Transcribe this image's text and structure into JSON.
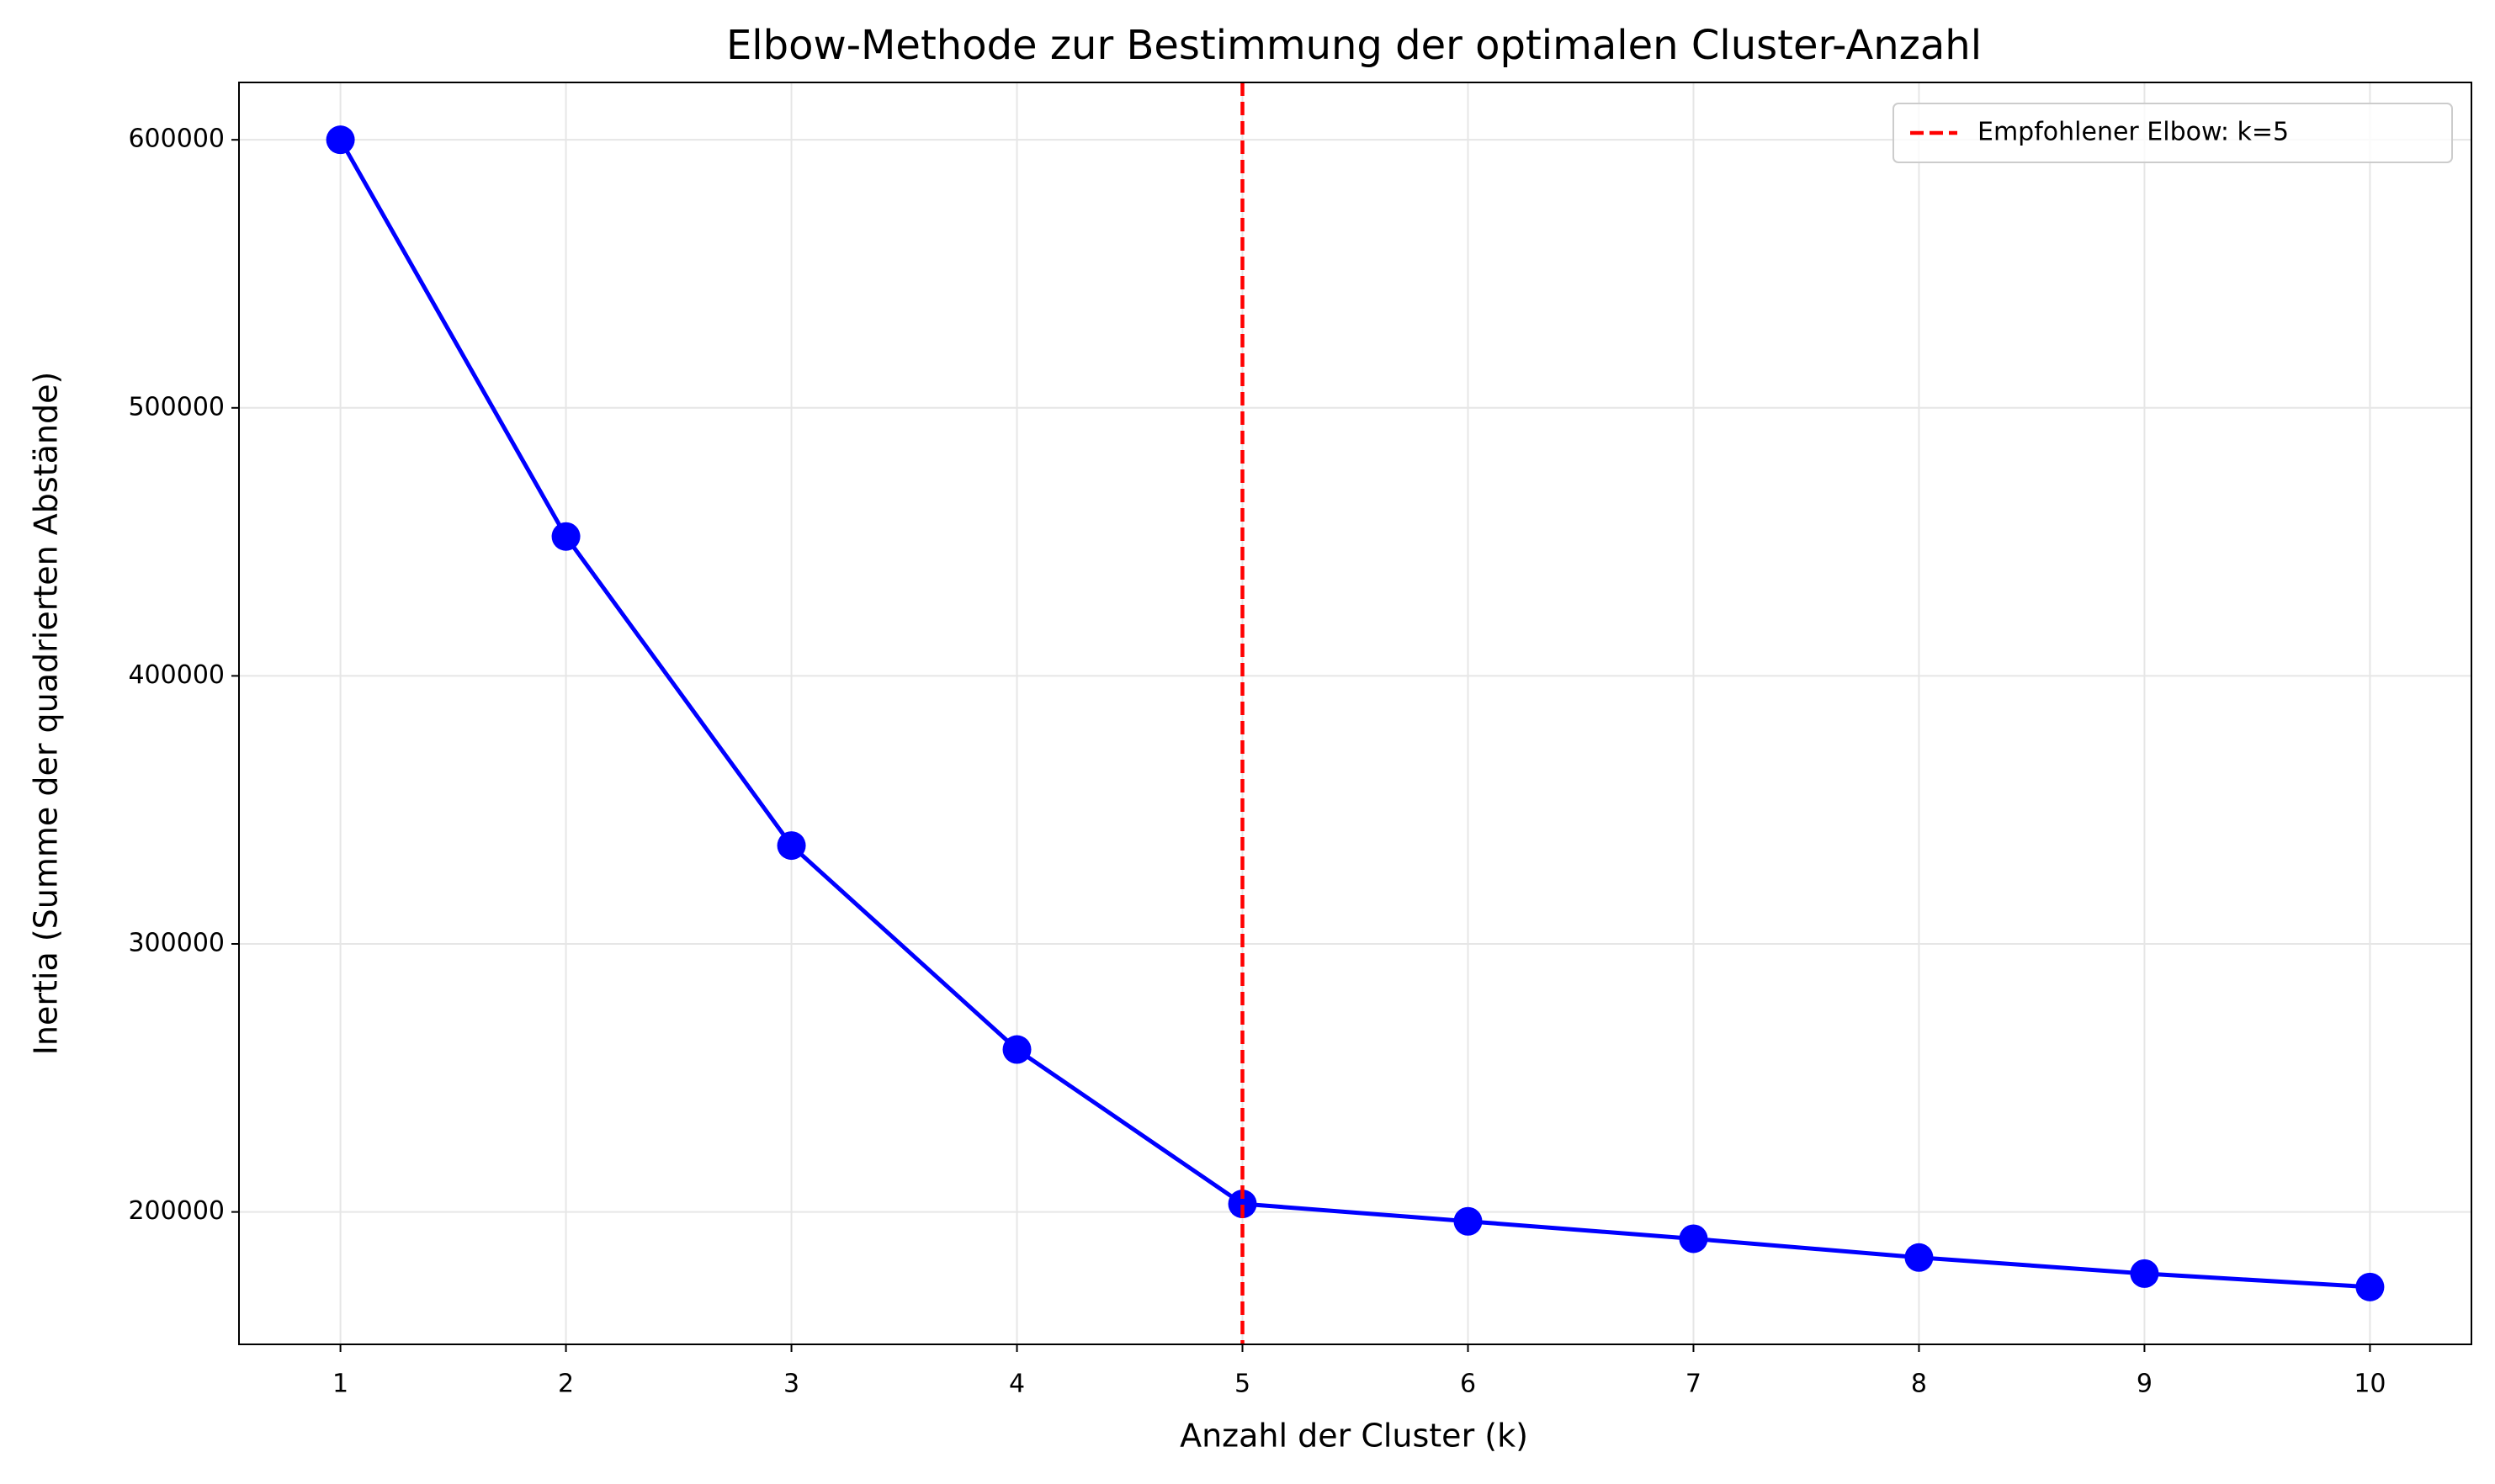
{
  "chart_data": {
    "type": "line",
    "title": "Elbow-Methode zur Bestimmung der optimalen Cluster-Anzahl",
    "x_label": "Anzahl der Cluster (k)",
    "y_label": "Inertia (Summe der quadrierten Abstände)",
    "x": [
      1,
      2,
      3,
      4,
      5,
      6,
      7,
      8,
      9,
      10
    ],
    "series": [
      {
        "color": "#0000ff",
        "values": [
          600000,
          452000,
          336700,
          260600,
          203000,
          196500,
          190000,
          183000,
          177000,
          172000
        ]
      }
    ],
    "vline": {
      "x": 5,
      "label": "Empfohlener Elbow: k=5",
      "color": "#ff0000"
    },
    "xlim": [
      0.55,
      10.45
    ],
    "xticks": [
      1,
      2,
      3,
      4,
      5,
      6,
      7,
      8,
      9,
      10
    ],
    "ylim": [
      150600,
      621400
    ],
    "yticks": [
      200000,
      300000,
      400000,
      500000,
      600000
    ],
    "grid": true,
    "legend": "upper right"
  }
}
